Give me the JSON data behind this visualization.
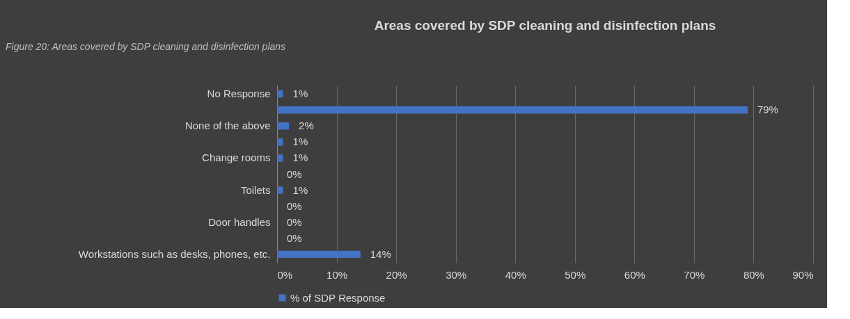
{
  "chart_data": {
    "type": "bar",
    "orientation": "horizontal",
    "title": "Areas covered by SDP cleaning and disinfection plans",
    "annotations": [
      "Figure 20: Areas covered by SDP cleaning and disinfection plans"
    ],
    "categories": [
      "No Response",
      null,
      "None of the above",
      null,
      "Change rooms",
      null,
      "Toilets",
      null,
      "Door handles",
      null,
      "Workstations such as desks, phones, etc."
    ],
    "series": [
      {
        "name": "% of SDP Response",
        "color": "#4472c4",
        "values": [
          1,
          79,
          2,
          1,
          1,
          0,
          1,
          0,
          0,
          0,
          14
        ],
        "value_labels": [
          "1%",
          "79%",
          "2%",
          "1%",
          "1%",
          "0%",
          "1%",
          "0%",
          "0%",
          "0%",
          "14%"
        ]
      }
    ],
    "xlim": [
      0,
      90
    ],
    "xticks": [
      {
        "value": 0,
        "label": "0%"
      },
      {
        "value": 10,
        "label": "10%"
      },
      {
        "value": 20,
        "label": "20%"
      },
      {
        "value": 30,
        "label": "30%"
      },
      {
        "value": 40,
        "label": "40%"
      },
      {
        "value": 50,
        "label": "50%"
      },
      {
        "value": 60,
        "label": "60%"
      },
      {
        "value": 70,
        "label": "70%"
      },
      {
        "value": 80,
        "label": "80%"
      },
      {
        "value": 90,
        "label": "90%"
      }
    ],
    "grid": "x",
    "legend": "bottom"
  }
}
